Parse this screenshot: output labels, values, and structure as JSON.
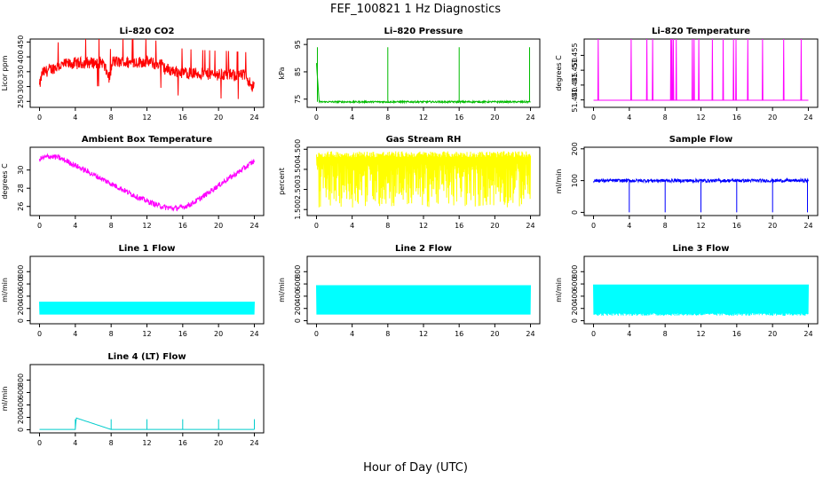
{
  "figure": {
    "title": "FEF_100821  1 Hz Diagnostics",
    "xlabel": "Hour of Day (UTC)"
  },
  "chart_data": [
    {
      "type": "line",
      "title": "Li–820 CO2",
      "ylabel": "Licor ppm",
      "color": "#ff0000",
      "xlim": [
        0,
        24
      ],
      "ylim": [
        230,
        460
      ],
      "xticks": [
        0,
        4,
        8,
        12,
        16,
        20,
        24
      ],
      "yticks": [
        250,
        300,
        350,
        400,
        450
      ],
      "series": [
        {
          "x": [
            0,
            0.3,
            1,
            2,
            3,
            4,
            5,
            6,
            7,
            7.8,
            8.2,
            9,
            10,
            11,
            12,
            13,
            13.5,
            14,
            15,
            16,
            17,
            18,
            19,
            20,
            21,
            22,
            23,
            23.8,
            24
          ],
          "y": [
            300,
            345,
            355,
            368,
            375,
            378,
            380,
            380,
            382,
            330,
            385,
            382,
            380,
            382,
            385,
            375,
            378,
            360,
            352,
            348,
            345,
            343,
            342,
            340,
            340,
            338,
            338,
            300,
            305
          ]
        }
      ]
    },
    {
      "type": "line",
      "title": "Li–820 Pressure",
      "ylabel": "kPa",
      "color": "#00bb00",
      "xlim": [
        0,
        24
      ],
      "ylim": [
        72,
        97
      ],
      "xticks": [
        0,
        4,
        8,
        12,
        16,
        20,
        24
      ],
      "yticks": [
        75,
        85,
        95
      ],
      "series": [
        {
          "x": [
            0,
            0.3,
            4,
            8,
            12,
            16,
            20,
            23.8,
            24
          ],
          "y": [
            88,
            74,
            74,
            74,
            74,
            74,
            74,
            74,
            74
          ]
        }
      ]
    },
    {
      "type": "line",
      "title": "Li–820 Temperature",
      "ylabel": "degrees C",
      "color": "#ff00ff",
      "xlim": [
        0,
        24
      ],
      "ylim": [
        51.4375,
        51.4605
      ],
      "xticks": [
        0,
        4,
        8,
        12,
        16,
        20,
        24
      ],
      "yticks": [
        51.44,
        51.445,
        51.45,
        51.455
      ],
      "series": [
        {
          "x": [
            0,
            6,
            12,
            18,
            24
          ],
          "y": [
            51.4399,
            51.4399,
            51.4399,
            51.4399,
            51.4399
          ]
        }
      ]
    },
    {
      "type": "line",
      "title": "Ambient Box Temperature",
      "ylabel": "degrees C",
      "color": "#ff00ff",
      "xlim": [
        0,
        24
      ],
      "ylim": [
        25,
        32.5
      ],
      "xticks": [
        0,
        4,
        8,
        12,
        16,
        20,
        24
      ],
      "yticks": [
        26,
        28,
        30
      ],
      "series": [
        {
          "x": [
            0,
            1,
            2,
            3,
            4,
            5,
            6,
            7,
            8,
            9,
            10,
            11,
            12,
            13,
            14,
            15,
            16,
            17,
            18,
            19,
            20,
            21,
            22,
            23,
            24
          ],
          "y": [
            31.2,
            31.5,
            31.4,
            31.0,
            30.5,
            30.0,
            29.5,
            29.0,
            28.5,
            28.0,
            27.5,
            27.0,
            26.6,
            26.2,
            25.9,
            25.8,
            25.9,
            26.3,
            26.9,
            27.6,
            28.3,
            29.0,
            29.6,
            30.3,
            31.0
          ]
        }
      ]
    },
    {
      "type": "line",
      "title": "Gas Stream RH",
      "ylabel": "percent",
      "color": "#ffff00",
      "xlim": [
        0,
        24
      ],
      "ylim": [
        1.2,
        4.6
      ],
      "xticks": [
        0,
        4,
        8,
        12,
        16,
        20,
        24
      ],
      "yticks": [
        1.5,
        2.5,
        3.5,
        4.5
      ],
      "series": [
        {
          "x": [
            0,
            24
          ],
          "y": [
            4.0,
            4.0
          ]
        }
      ]
    },
    {
      "type": "line",
      "title": "Sample Flow",
      "ylabel": "ml/min",
      "color": "#0000ff",
      "xlim": [
        0,
        24
      ],
      "ylim": [
        -10,
        205
      ],
      "xticks": [
        0,
        4,
        8,
        12,
        16,
        20,
        24
      ],
      "yticks": [
        0,
        100,
        200
      ],
      "series": [
        {
          "x": [
            0,
            4,
            8,
            12,
            16,
            20,
            24
          ],
          "y": [
            100,
            100,
            100,
            100,
            100,
            100,
            100
          ]
        }
      ]
    },
    {
      "type": "line",
      "title": "Line 1 Flow",
      "ylabel": "ml/min",
      "color": "#00ffff",
      "xlim": [
        0,
        24
      ],
      "ylim": [
        -50,
        1050
      ],
      "xticks": [
        0,
        4,
        8,
        12,
        16,
        20,
        24
      ],
      "yticks": [
        0,
        200,
        400,
        600,
        800
      ],
      "series": [
        {
          "x": [
            0,
            24
          ],
          "y": [
            300,
            300
          ]
        }
      ]
    },
    {
      "type": "line",
      "title": "Line 2 Flow",
      "ylabel": "ml/min",
      "color": "#00ffff",
      "xlim": [
        0,
        24
      ],
      "ylim": [
        -50,
        1050
      ],
      "xticks": [
        0,
        4,
        8,
        12,
        16,
        20,
        24
      ],
      "yticks": [
        0,
        200,
        400,
        600,
        800
      ],
      "series": [
        {
          "x": [
            0,
            24
          ],
          "y": [
            560,
            560
          ]
        }
      ]
    },
    {
      "type": "line",
      "title": "Line 3 Flow",
      "ylabel": "ml/min",
      "color": "#00ffff",
      "xlim": [
        0,
        24
      ],
      "ylim": [
        -50,
        1050
      ],
      "xticks": [
        0,
        4,
        8,
        12,
        16,
        20,
        24
      ],
      "yticks": [
        0,
        200,
        400,
        600,
        800
      ],
      "series": [
        {
          "x": [
            0,
            24
          ],
          "y": [
            570,
            570
          ]
        }
      ]
    },
    {
      "type": "line",
      "title": "Line 4 (LT) Flow",
      "ylabel": "ml/min",
      "color": "#00cccc",
      "xlim": [
        0,
        24
      ],
      "ylim": [
        -50,
        1050
      ],
      "xticks": [
        0,
        4,
        8,
        12,
        16,
        20,
        24
      ],
      "yticks": [
        0,
        200,
        400,
        600,
        800
      ],
      "series": [
        {
          "x": [
            0,
            4,
            4.1,
            8,
            12,
            16,
            20,
            24
          ],
          "y": [
            5,
            5,
            190,
            5,
            5,
            5,
            5,
            5
          ]
        }
      ]
    }
  ]
}
